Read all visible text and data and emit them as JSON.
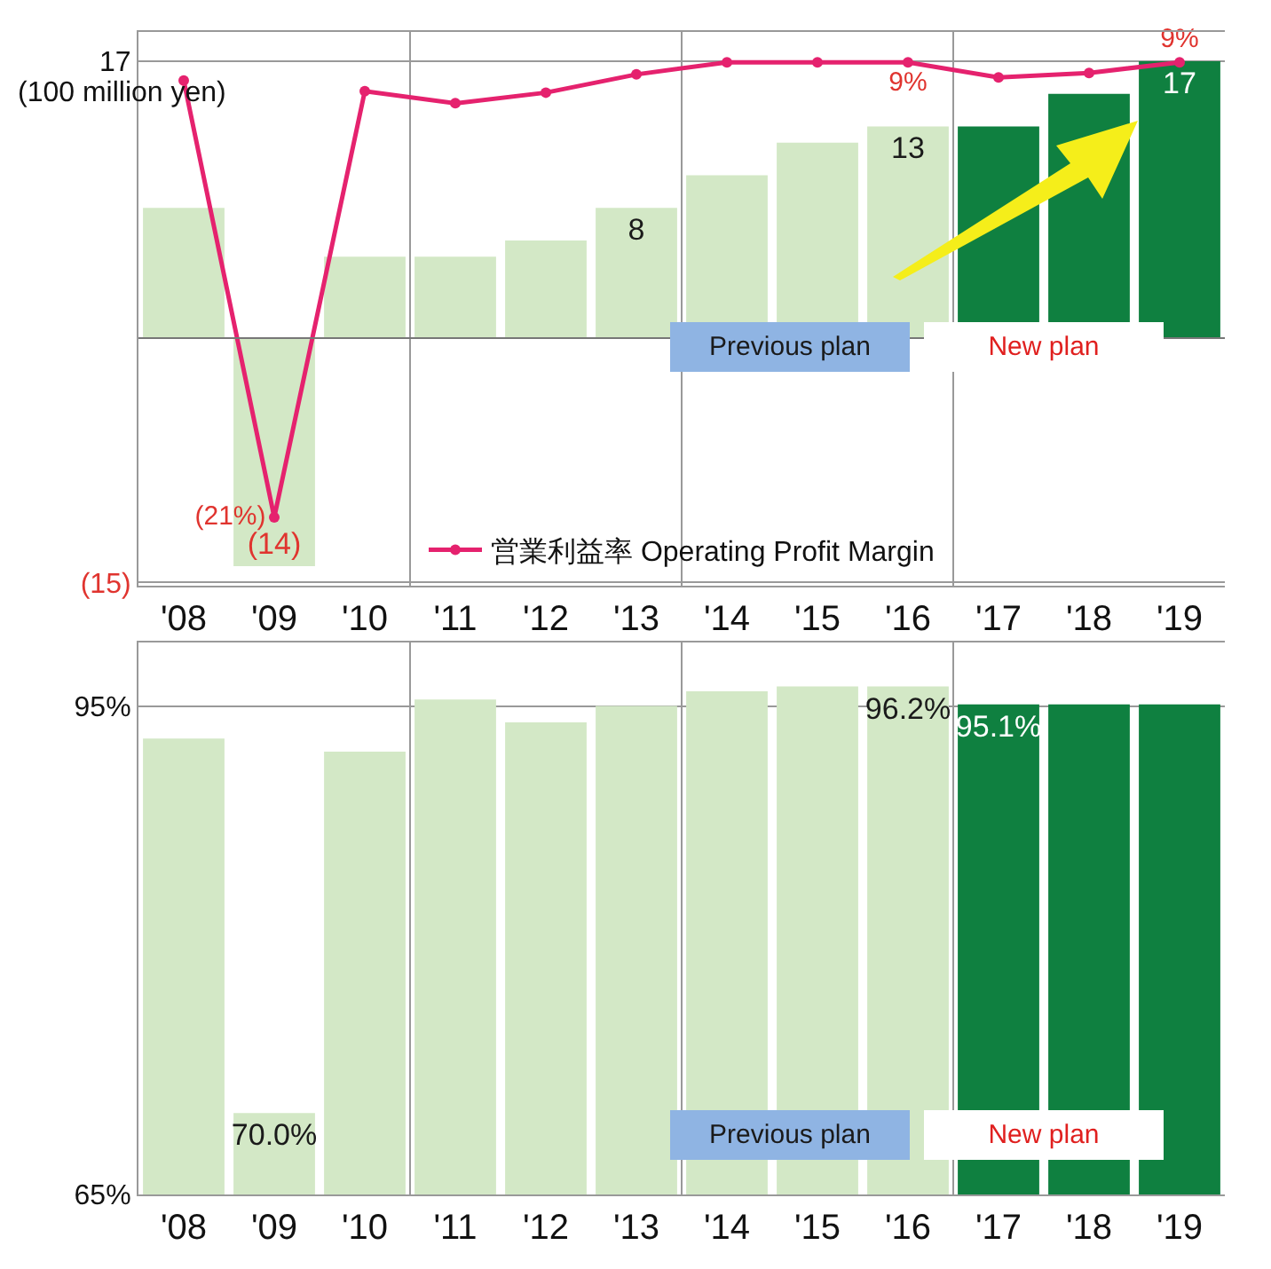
{
  "chart_data": [
    {
      "type": "bar",
      "ylabel": "(100 million yen)",
      "categories": [
        "'08",
        "'09",
        "'10",
        "'11",
        "'12",
        "'13",
        "'14",
        "'15",
        "'16",
        "'17",
        "'18",
        "'19"
      ],
      "series": [
        {
          "colors": [
            "#d3e8c6",
            "#d3e8c6",
            "#d3e8c6",
            "#d3e8c6",
            "#d3e8c6",
            "#d3e8c6",
            "#d3e8c6",
            "#d3e8c6",
            "#d3e8c6",
            "#0f8040",
            "#0f8040",
            "#0f8040"
          ],
          "values": [
            8,
            -14,
            5,
            5,
            6,
            8,
            10,
            12,
            13,
            13,
            15,
            17
          ],
          "value_labels": [
            null,
            "(14)",
            null,
            null,
            null,
            "8",
            null,
            null,
            "13",
            null,
            null,
            "17"
          ]
        },
        {
          "type": "line",
          "axis": "y2",
          "name": "営業利益率 Operating Profit Margin",
          "color": "#e5226e",
          "values": [
            7.8,
            -21,
            7.1,
            6.3,
            7.0,
            8.2,
            9,
            9,
            9,
            8.0,
            8.3,
            9
          ],
          "value_labels": [
            null,
            "(21%)",
            null,
            null,
            null,
            null,
            null,
            null,
            "9%",
            null,
            null,
            "9%"
          ]
        }
      ],
      "ylim": [
        -15.2,
        18.8
      ],
      "yticks": [
        17,
        {
          "value": -15,
          "label": "(15)"
        }
      ],
      "y2lim": [
        -25.5,
        11
      ],
      "ref_lines": [
        {
          "axis": "y",
          "value": 0
        }
      ],
      "grid": "y",
      "legend": "bottom",
      "marker": "circle",
      "annotations": [
        "Previous plan",
        "New plan"
      ]
    },
    {
      "type": "bar",
      "categories": [
        "'08",
        "'09",
        "'10",
        "'11",
        "'12",
        "'13",
        "'14",
        "'15",
        "'16",
        "'17",
        "'18",
        "'19"
      ],
      "series": [
        {
          "colors": [
            "#d3e8c6",
            "#d3e8c6",
            "#d3e8c6",
            "#d3e8c6",
            "#d3e8c6",
            "#d3e8c6",
            "#d3e8c6",
            "#d3e8c6",
            "#d3e8c6",
            "#0f8040",
            "#0f8040",
            "#0f8040"
          ],
          "values": [
            93.0,
            70.0,
            92.2,
            95.4,
            94.0,
            95.0,
            95.9,
            96.2,
            96.2,
            95.1,
            95.1,
            95.1
          ],
          "value_labels": [
            null,
            "70.0%",
            null,
            null,
            null,
            null,
            null,
            null,
            "96.2%",
            "95.1%",
            null,
            null
          ]
        }
      ],
      "ylim": [
        65,
        98.9
      ],
      "yticks": [
        {
          "value": 95,
          "label": "95%"
        },
        {
          "value": 65,
          "label": "65%"
        }
      ],
      "grid": "y",
      "annotations": [
        "Previous plan",
        "New plan"
      ]
    }
  ]
}
